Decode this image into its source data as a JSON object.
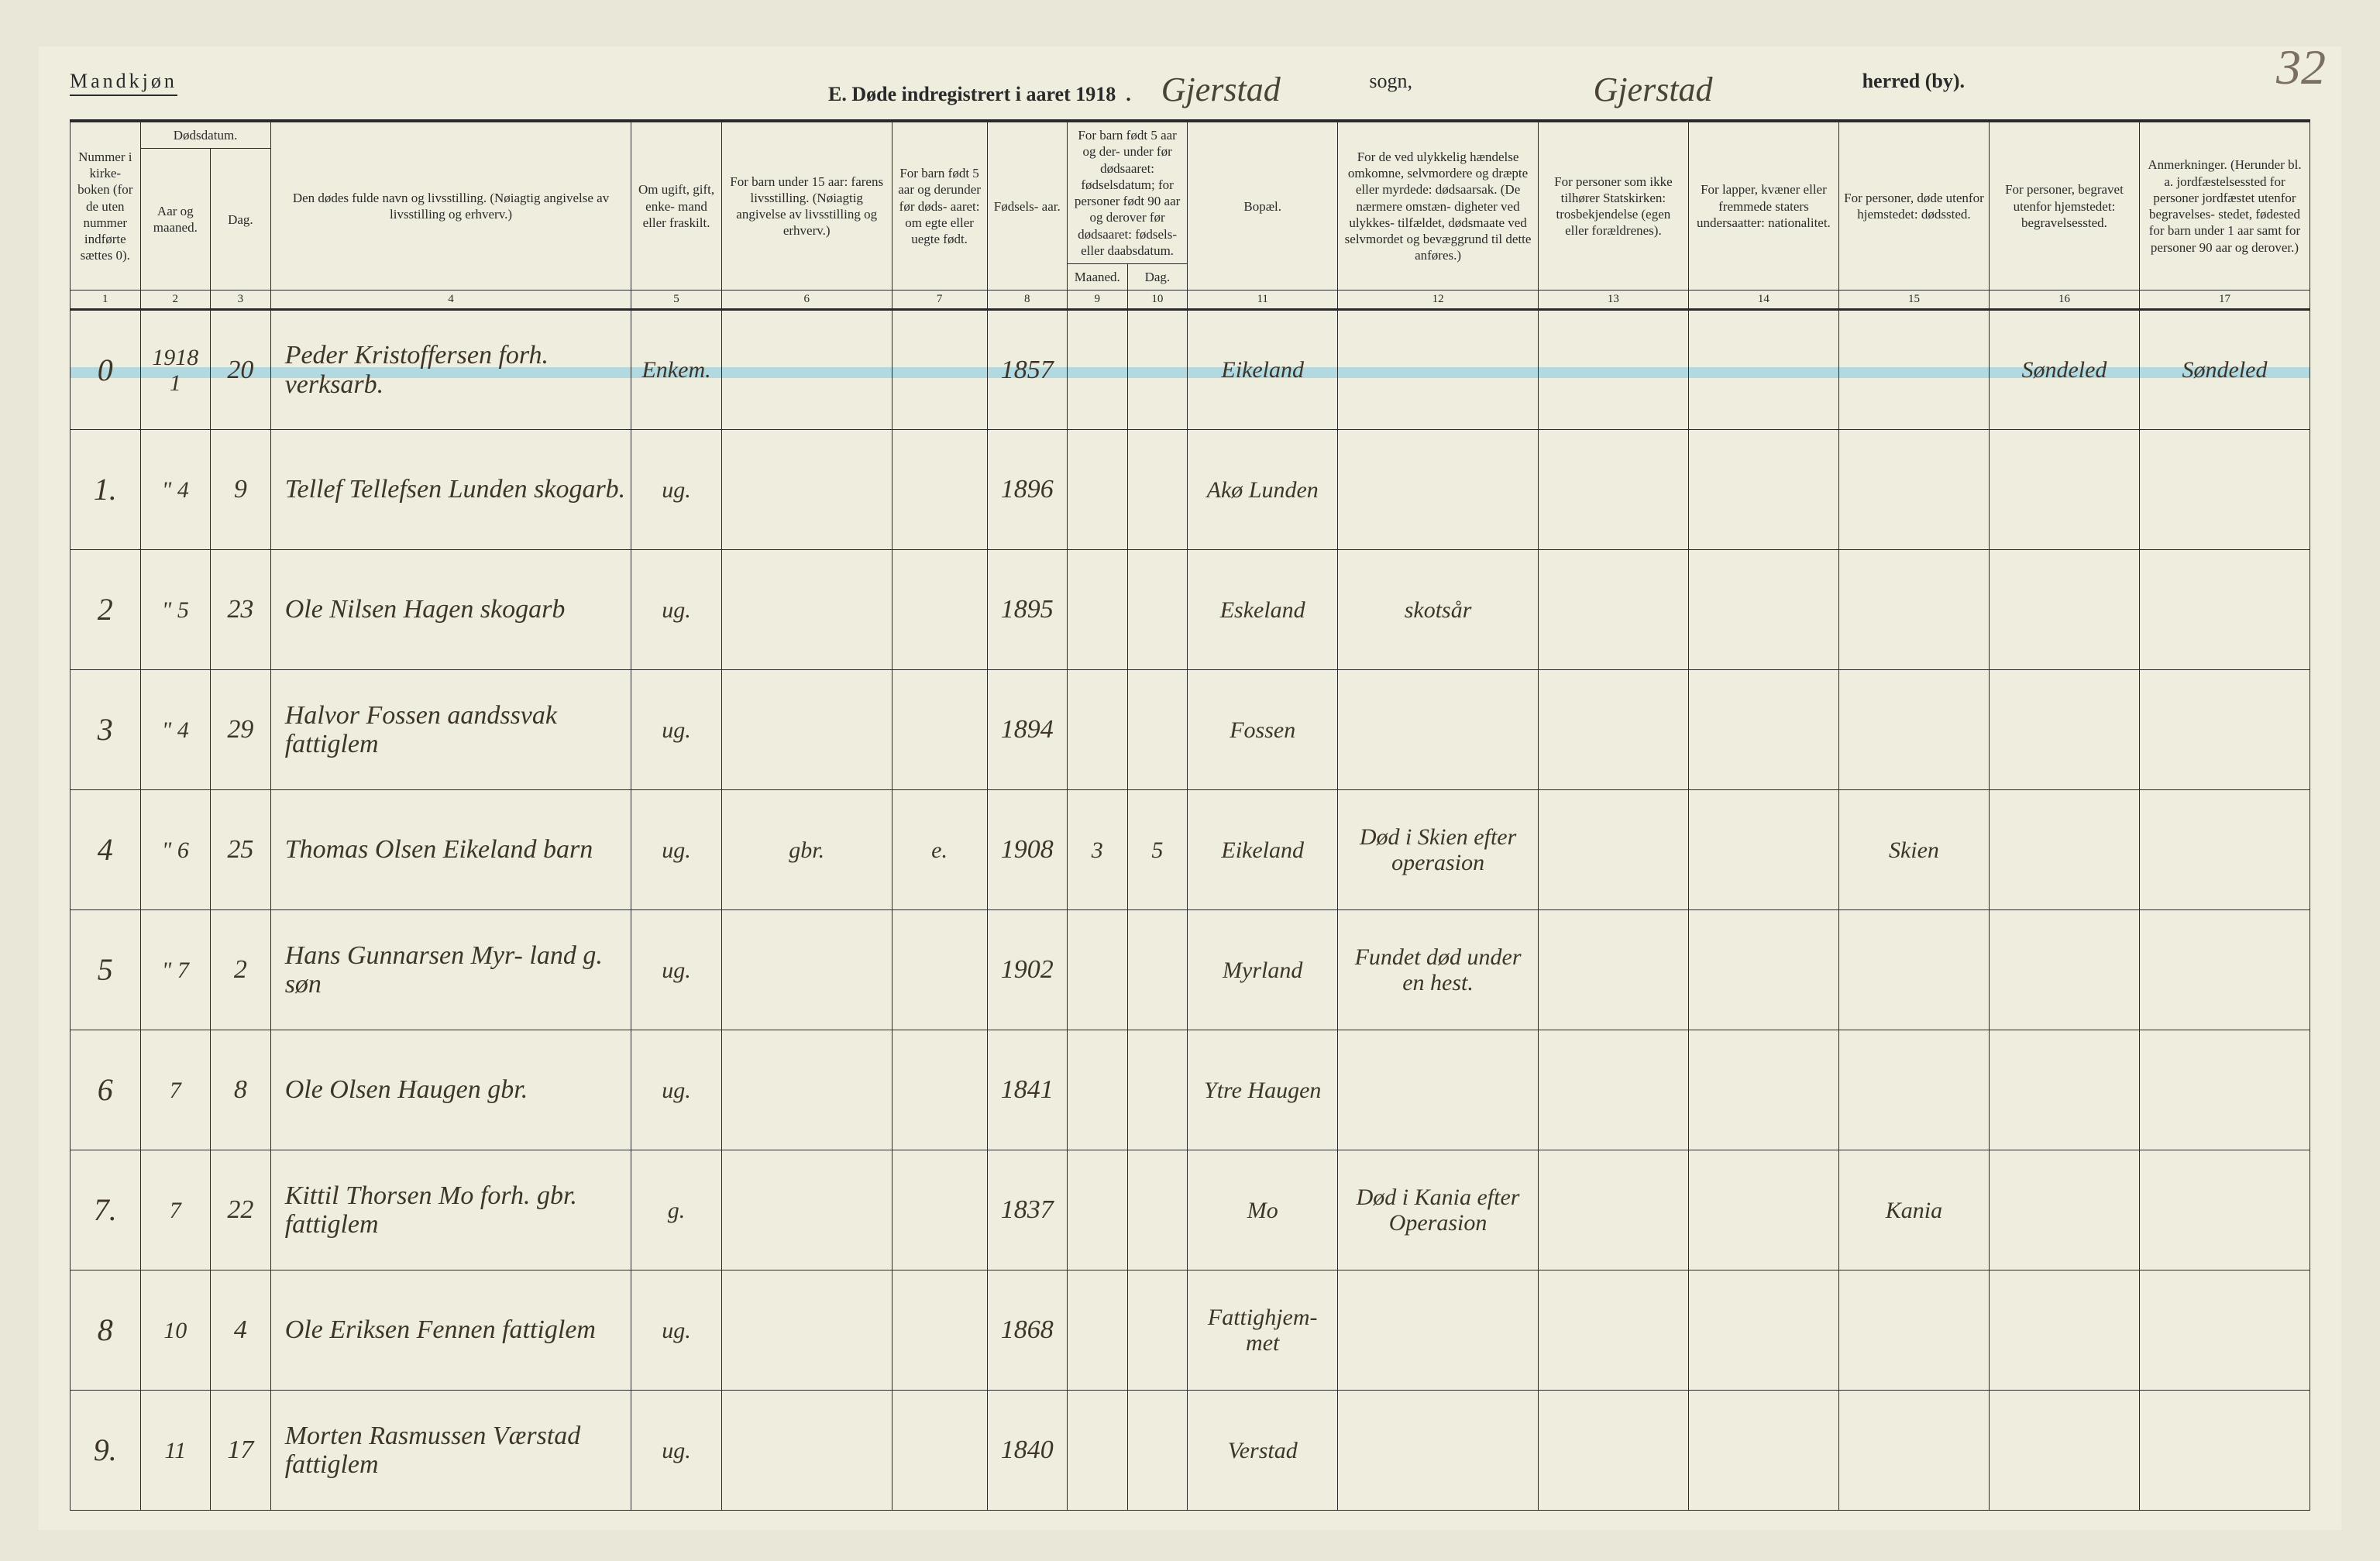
{
  "header": {
    "gender": "Mandkjøn",
    "title_prefix": "E.   Døde indregistrert i aaret 191",
    "title_year_suffix": "8",
    "sogn_cursive": "Gjerstad",
    "sogn_label": "sogn,",
    "herred_cursive": "Gjerstad",
    "herred_label": "herred (by).",
    "page_corner": "32"
  },
  "columns": {
    "c1": "Nummer i kirke- boken (for de uten nummer indførte sættes 0).",
    "c2a": "Dødsdatum.",
    "c2b_aar": "Aar og maaned.",
    "c2b_dag": "Dag.",
    "c4": "Den dødes fulde navn og livsstilling.\n(Nøiagtig angivelse av livsstilling og erhverv.)",
    "c5": "Om ugift, gift, enke- mand eller fraskilt.",
    "c6": "For barn under 15 aar: farens livsstilling.\n(Nøiagtig angivelse av livsstilling og erhverv.)",
    "c7": "For barn født 5 aar og derunder før døds- aaret: om egte eller uegte født.",
    "c8": "Fødsels- aar.",
    "c9_10_top": "For barn født 5 aar og der- under før dødsaaret: fødselsdatum; for personer født 90 aar og derover før dødsaaret: fødsels- eller daabsdatum.",
    "c9": "Maaned.",
    "c10": "Dag.",
    "c11": "Bopæl.",
    "c12": "For de ved ulykkelig hændelse omkomne, selvmordere og dræpte eller myrdede: dødsaarsak.\n(De nærmere omstæn- digheter ved ulykkes- tilfældet, dødsmaate ved selvmordet og bevæggrund til dette anføres.)",
    "c13": "For personer som ikke tilhører Statskirken: trosbekjendelse (egen eller forældrenes).",
    "c14": "For lapper, kvæner eller fremmede staters undersaatter: nationalitet.",
    "c15": "For personer, døde utenfor hjemstedet: dødssted.",
    "c16": "For personer, begravet utenfor hjemstedet: begravelsessted.",
    "c17": "Anmerkninger.\n(Herunder bl. a. jordfæstelsessted for personer jordfæstet utenfor begravelses- stedet, fødested for barn under 1 aar samt for personer 90 aar og derover.)"
  },
  "colnums": [
    "1",
    "2",
    "3",
    "4",
    "5",
    "6",
    "7",
    "8",
    "9",
    "10",
    "11",
    "12",
    "13",
    "14",
    "15",
    "16",
    "17"
  ],
  "rows": [
    {
      "num": "0",
      "aar": "1918\n1",
      "dag": "20",
      "name": "Peder Kristoffersen\nforh. verksarb.",
      "status": "Enkem.",
      "faren": "",
      "egte": "",
      "faar": "1857",
      "mnd": "",
      "ddag": "",
      "bopael": "Eikeland",
      "doedsaarsak": "",
      "tros": "",
      "nat": "",
      "doedssted": "",
      "begrav": "Søndeled",
      "anm": "Søndeled"
    },
    {
      "num": "1.",
      "aar": "\"\n4",
      "dag": "9",
      "name": "Tellef Tellefsen Lunden\nskogarb.",
      "status": "ug.",
      "faren": "",
      "egte": "",
      "faar": "1896",
      "mnd": "",
      "ddag": "",
      "bopael": "Akø\nLunden",
      "doedsaarsak": "",
      "tros": "",
      "nat": "",
      "doedssted": "",
      "begrav": "",
      "anm": ""
    },
    {
      "num": "2",
      "aar": "\"\n5",
      "dag": "23",
      "name": "Ole Nilsen Hagen\nskogarb",
      "status": "ug.",
      "faren": "",
      "egte": "",
      "faar": "1895",
      "mnd": "",
      "ddag": "",
      "bopael": "Eskeland",
      "doedsaarsak": "skotsår",
      "tros": "",
      "nat": "",
      "doedssted": "",
      "begrav": "",
      "anm": ""
    },
    {
      "num": "3",
      "aar": "\"\n4",
      "dag": "29",
      "name": "Halvor Fossen\naandssvak fattiglem",
      "status": "ug.",
      "faren": "",
      "egte": "",
      "faar": "1894",
      "mnd": "",
      "ddag": "",
      "bopael": "Fossen",
      "doedsaarsak": "",
      "tros": "",
      "nat": "",
      "doedssted": "",
      "begrav": "",
      "anm": ""
    },
    {
      "num": "4",
      "aar": "\"\n6",
      "dag": "25",
      "name": "Thomas Olsen Eikeland\nbarn",
      "status": "ug.",
      "faren": "gbr.",
      "egte": "e.",
      "faar": "1908",
      "mnd": "3",
      "ddag": "5",
      "bopael": "Eikeland",
      "doedsaarsak": "Død i Skien\nefter operasion",
      "tros": "",
      "nat": "",
      "doedssted": "Skien",
      "begrav": "",
      "anm": ""
    },
    {
      "num": "5",
      "aar": "\"\n7",
      "dag": "2",
      "name": "Hans Gunnarsen Myr-\nland   g. søn",
      "status": "ug.",
      "faren": "",
      "egte": "",
      "faar": "1902",
      "mnd": "",
      "ddag": "",
      "bopael": "Myrland",
      "doedsaarsak": "Fundet død\nunder en\nhest.",
      "tros": "",
      "nat": "",
      "doedssted": "",
      "begrav": "",
      "anm": ""
    },
    {
      "num": "6",
      "aar": "7",
      "dag": "8",
      "name": "Ole Olsen Haugen\ngbr.",
      "status": "ug.",
      "faren": "",
      "egte": "",
      "faar": "1841",
      "mnd": "",
      "ddag": "",
      "bopael": "Ytre\nHaugen",
      "doedsaarsak": "",
      "tros": "",
      "nat": "",
      "doedssted": "",
      "begrav": "",
      "anm": ""
    },
    {
      "num": "7.",
      "aar": "7",
      "dag": "22",
      "name": "Kittil Thorsen Mo\nforh. gbr. fattiglem",
      "status": "g.",
      "faren": "",
      "egte": "",
      "faar": "1837",
      "mnd": "",
      "ddag": "",
      "bopael": "Mo",
      "doedsaarsak": "Død i Kania\nefter Operasion",
      "tros": "",
      "nat": "",
      "doedssted": "Kania",
      "begrav": "",
      "anm": ""
    },
    {
      "num": "8",
      "aar": "10",
      "dag": "4",
      "name": "Ole Eriksen Fennen\nfattiglem",
      "status": "ug.",
      "faren": "",
      "egte": "",
      "faar": "1868",
      "mnd": "",
      "ddag": "",
      "bopael": "Fattighjem-\nmet",
      "doedsaarsak": "",
      "tros": "",
      "nat": "",
      "doedssted": "",
      "begrav": "",
      "anm": ""
    },
    {
      "num": "9.",
      "aar": "11",
      "dag": "17",
      "name": "Morten Rasmussen\nVærstad\nfattiglem",
      "status": "ug.",
      "faren": "",
      "egte": "",
      "faar": "1840",
      "mnd": "",
      "ddag": "",
      "bopael": "Verstad",
      "doedsaarsak": "",
      "tros": "",
      "nat": "",
      "doedssted": "",
      "begrav": "",
      "anm": ""
    }
  ],
  "style": {
    "bg": "#eeedde",
    "ink": "#2a2a2a",
    "cursive_ink": "#3d352a",
    "highlight": "#a7d4e0"
  }
}
